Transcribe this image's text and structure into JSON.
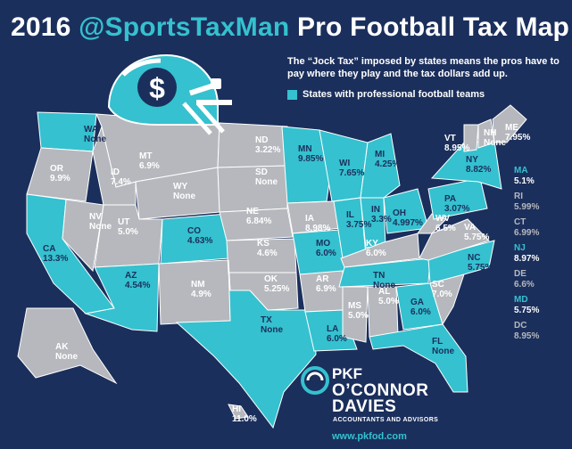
{
  "header": {
    "title_prefix": "2016 ",
    "title_handle": "@SportsTaxMan",
    "title_suffix": " Pro Football Tax Map"
  },
  "intro": "The “Jock Tax” imposed by states means the pros have to pay where they play and the tax dollars add up.",
  "legend": {
    "label": "States with professional football teams"
  },
  "colors": {
    "background": "#1b2f5c",
    "team_state": "#35c1cf",
    "other_state": "#b6b8bd",
    "accent": "#35c1cf"
  },
  "helmet": {
    "symbol": "$",
    "icon": "football-helmet-icon"
  },
  "states": [
    {
      "abbr": "WA",
      "rate": "None",
      "team": true
    },
    {
      "abbr": "OR",
      "rate": "9.9%",
      "team": false
    },
    {
      "abbr": "CA",
      "rate": "13.3%",
      "team": true
    },
    {
      "abbr": "NV",
      "rate": "None",
      "team": false
    },
    {
      "abbr": "ID",
      "rate": "7.4%",
      "team": false
    },
    {
      "abbr": "MT",
      "rate": "6.9%",
      "team": false
    },
    {
      "abbr": "WY",
      "rate": "None",
      "team": false
    },
    {
      "abbr": "UT",
      "rate": "5.0%",
      "team": false
    },
    {
      "abbr": "AZ",
      "rate": "4.54%",
      "team": true
    },
    {
      "abbr": "CO",
      "rate": "4.63%",
      "team": true
    },
    {
      "abbr": "NM",
      "rate": "4.9%",
      "team": false
    },
    {
      "abbr": "ND",
      "rate": "3.22%",
      "team": false
    },
    {
      "abbr": "SD",
      "rate": "None",
      "team": false
    },
    {
      "abbr": "NE",
      "rate": "6.84%",
      "team": false
    },
    {
      "abbr": "KS",
      "rate": "4.6%",
      "team": false
    },
    {
      "abbr": "OK",
      "rate": "5.25%",
      "team": false
    },
    {
      "abbr": "TX",
      "rate": "None",
      "team": true
    },
    {
      "abbr": "MN",
      "rate": "9.85%",
      "team": true
    },
    {
      "abbr": "IA",
      "rate": "8.98%",
      "team": false
    },
    {
      "abbr": "MO",
      "rate": "6.0%",
      "team": true
    },
    {
      "abbr": "AR",
      "rate": "6.9%",
      "team": false
    },
    {
      "abbr": "LA",
      "rate": "6.0%",
      "team": true
    },
    {
      "abbr": "WI",
      "rate": "7.65%",
      "team": true
    },
    {
      "abbr": "IL",
      "rate": "3.75%",
      "team": true
    },
    {
      "abbr": "MI",
      "rate": "4.25%",
      "team": true
    },
    {
      "abbr": "IN",
      "rate": "3.3%",
      "team": true
    },
    {
      "abbr": "OH",
      "rate": "4.997%",
      "team": true
    },
    {
      "abbr": "KY",
      "rate": "6.0%",
      "team": false
    },
    {
      "abbr": "TN",
      "rate": "None",
      "team": true
    },
    {
      "abbr": "MS",
      "rate": "5.0%",
      "team": false
    },
    {
      "abbr": "AL",
      "rate": "5.0%",
      "team": false
    },
    {
      "abbr": "GA",
      "rate": "6.0%",
      "team": true
    },
    {
      "abbr": "FL",
      "rate": "None",
      "team": true
    },
    {
      "abbr": "SC",
      "rate": "7.0%",
      "team": false
    },
    {
      "abbr": "NC",
      "rate": "5.75%",
      "team": true
    },
    {
      "abbr": "VA",
      "rate": "5.75%",
      "team": false
    },
    {
      "abbr": "WV",
      "rate": "6.5%",
      "team": false
    },
    {
      "abbr": "PA",
      "rate": "3.07%",
      "team": true
    },
    {
      "abbr": "NY",
      "rate": "8.82%",
      "team": true
    },
    {
      "abbr": "VT",
      "rate": "8.95%",
      "team": false
    },
    {
      "abbr": "NH",
      "rate": "None",
      "team": false
    },
    {
      "abbr": "ME",
      "rate": "7.95%",
      "team": false
    },
    {
      "abbr": "AK",
      "rate": "None",
      "team": false
    },
    {
      "abbr": "HI",
      "rate": "11.0%",
      "team": false
    }
  ],
  "northeast_list": [
    {
      "abbr": "MA",
      "rate": "5.1%",
      "team": true
    },
    {
      "abbr": "RI",
      "rate": "5.99%",
      "team": false
    },
    {
      "abbr": "CT",
      "rate": "6.99%",
      "team": false
    },
    {
      "abbr": "NJ",
      "rate": "8.97%",
      "team": true
    },
    {
      "abbr": "DE",
      "rate": "6.6%",
      "team": false
    },
    {
      "abbr": "MD",
      "rate": "5.75%",
      "team": true
    },
    {
      "abbr": "DC",
      "rate": "8.95%",
      "team": false
    }
  ],
  "branding": {
    "logo_mark": "PKF",
    "firm_line1": "O’CONNOR",
    "firm_line2": "DAVIES",
    "tagline": "ACCOUNTANTS AND ADVISORS",
    "url": "www.pkfod.com"
  }
}
